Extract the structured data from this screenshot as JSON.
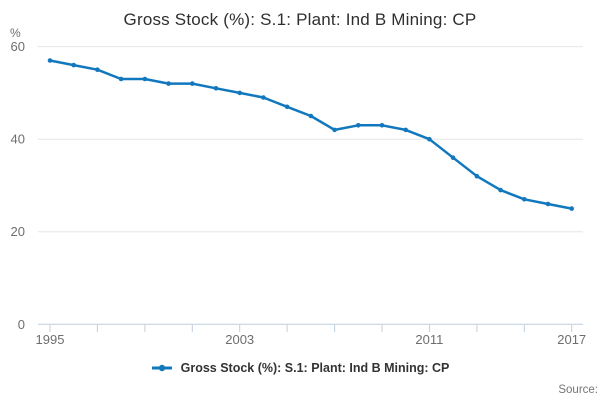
{
  "title": "Gross Stock (%): S.1: Plant: Ind B Mining: CP",
  "legend": {
    "label": "Gross Stock (%): S.1: Plant: Ind B Mining: CP"
  },
  "source": {
    "label": "Source:"
  },
  "colors": {
    "line": "#1278bd",
    "grid": "#e6e6e6",
    "axis": "#c0cfdd",
    "tick": "#c0cfdd",
    "axis_text": "#6e6e6e",
    "title_text": "#2f2f2f"
  },
  "chart_data": {
    "type": "line",
    "title": "Gross Stock (%): S.1: Plant: Ind B Mining: CP",
    "xlabel": "",
    "ylabel": "%",
    "ylim": [
      0,
      60
    ],
    "yticks": [
      0,
      20,
      40,
      60
    ],
    "xticks_every": 2,
    "xticks_labeled": [
      1995,
      2003,
      2011,
      2017
    ],
    "grid": "horizontal",
    "legend_position": "bottom",
    "x": [
      1995,
      1996,
      1997,
      1998,
      1999,
      2000,
      2001,
      2002,
      2003,
      2004,
      2005,
      2006,
      2007,
      2008,
      2009,
      2010,
      2011,
      2012,
      2013,
      2014,
      2015,
      2016,
      2017
    ],
    "series": [
      {
        "name": "Gross Stock (%): S.1: Plant: Ind B Mining: CP",
        "values": [
          57,
          56,
          55,
          53,
          53,
          52,
          52,
          51,
          50,
          49,
          47,
          45,
          42,
          43,
          43,
          42,
          40,
          36,
          32,
          29,
          27,
          26,
          25
        ]
      }
    ]
  }
}
